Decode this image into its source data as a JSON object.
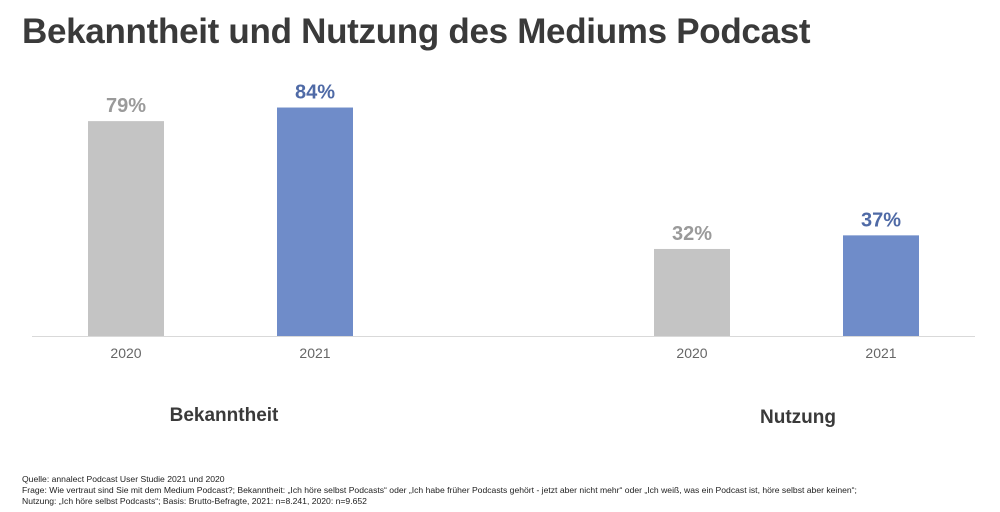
{
  "title": "Bekanntheit und Nutzung des Mediums Podcast",
  "colors": {
    "2020": "#c4c4c4",
    "2021": "#6f8cc9",
    "label_2020": "#9a9a9a",
    "label_2021": "#4f6aa6",
    "text": "#3a3a3a",
    "axis": "#d9d9d9"
  },
  "chart_data": {
    "type": "bar",
    "ylim": [
      0,
      100
    ],
    "unit": "%",
    "grid": false,
    "groups": [
      {
        "name": "Bekanntheit",
        "bars": [
          {
            "category": "2020",
            "value": 79
          },
          {
            "category": "2021",
            "value": 84
          }
        ]
      },
      {
        "name": "Nutzung",
        "bars": [
          {
            "category": "2020",
            "value": 32
          },
          {
            "category": "2021",
            "value": 37
          }
        ]
      }
    ]
  },
  "footer": {
    "line1": "Quelle: annalect Podcast User Studie 2021 und 2020",
    "line2": "Frage: Wie vertraut sind Sie mit dem Medium Podcast?; Bekanntheit: „Ich höre selbst Podcasts“ oder „Ich habe früher Podcasts gehört - jetzt aber nicht mehr“ oder „Ich weiß, was ein Podcast ist, höre selbst aber keinen“;",
    "line3": "Nutzung: „Ich höre selbst Podcasts“; Basis: Brutto-Befragte, 2021: n=8.241, 2020: n=9.652"
  }
}
